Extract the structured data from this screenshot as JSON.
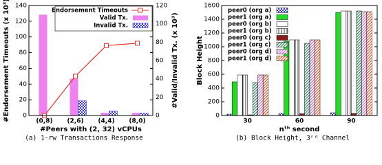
{
  "chart_data": [
    {
      "type": "combo",
      "caption": "(a) 1-rw Transactions Response",
      "xlabel": "#Peers with (2, 32) vCPUs",
      "ylabel": "#Endorsement Timeouts (x 10³)",
      "y2label": "#Valid/Invalid Tx. (x 10³)",
      "categories": [
        "(0,8)",
        "(2,6)",
        "(4,4)",
        "(8,0)"
      ],
      "ylim": [
        0,
        140
      ],
      "yticks": [
        0,
        20,
        40,
        60,
        80,
        100,
        120,
        140
      ],
      "y2lim": [
        0,
        120
      ],
      "y2ticks": [
        0,
        20,
        40,
        60,
        80,
        100,
        120
      ],
      "legend": "upper right",
      "series": [
        {
          "name": "Endorsement Timeouts",
          "type": "line",
          "color": "#e8312a",
          "values": [
            0,
            50,
            89,
            92
          ]
        },
        {
          "name": "Valid Tx.",
          "type": "bar",
          "axis": "y2",
          "color": "#ee82ee",
          "values": [
            110,
            40,
            3,
            3
          ]
        },
        {
          "name": "Invalid Tx.",
          "type": "bar",
          "axis": "y2",
          "color": "#3a3adf",
          "pattern": "checker",
          "values": [
            0,
            16,
            5,
            2.5
          ]
        }
      ]
    },
    {
      "type": "bar",
      "caption": "(b) Block Height, 3ʳᵈ Channel",
      "xlabel": "nᵗʰ second",
      "ylabel": "Block Height",
      "categories": [
        "30",
        "60",
        "90"
      ],
      "ylim": [
        0,
        1600
      ],
      "yticks": [
        0,
        200,
        400,
        600,
        800,
        1000,
        1200,
        1400,
        1600
      ],
      "legend": "upper left",
      "series": [
        {
          "name": "peer0 (org a)",
          "color": "#3a3adf",
          "pattern": "checker",
          "values": [
            20,
            30,
            40
          ]
        },
        {
          "name": "peer1 (org a)",
          "color": "#22dd22",
          "values": [
            490,
            1080,
            1500
          ]
        },
        {
          "name": "peer0 (org b)",
          "color": "#ffffff",
          "values": [
            590,
            1100,
            1520
          ]
        },
        {
          "name": "peer1 (org b)",
          "color": "#000000",
          "pattern": "vertical",
          "values": [
            590,
            1100,
            1520
          ]
        },
        {
          "name": "peer0 (org c)",
          "color": "#8b1a1a",
          "values": [
            10,
            25,
            30
          ]
        },
        {
          "name": "peer1 (org c)",
          "color": "#2e8b57",
          "pattern": "diagonal",
          "values": [
            480,
            1050,
            1520
          ]
        },
        {
          "name": "peer0 (org d)",
          "color": "#d070d0",
          "pattern": "diagonal",
          "values": [
            590,
            1100,
            1510
          ]
        },
        {
          "name": "peer1 (org d)",
          "color": "#e06030",
          "pattern": "diagonal",
          "values": [
            590,
            1100,
            1510
          ]
        }
      ]
    }
  ]
}
